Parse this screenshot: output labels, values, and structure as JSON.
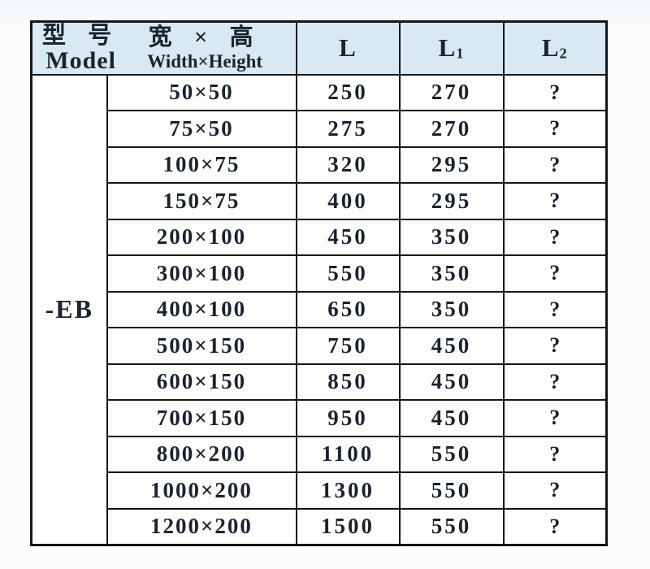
{
  "table": {
    "header": {
      "model_cn": "型 号",
      "model_en": "Model",
      "size_cn": "宽 × 高",
      "size_en": "Width×Height",
      "l": "L",
      "l1": {
        "base": "L",
        "sub": "1"
      },
      "l2": {
        "base": "L",
        "sub": "2"
      }
    },
    "series_label": "-EB",
    "rows": [
      {
        "size": "50×50",
        "l": "250",
        "l1": "270",
        "l2": "?"
      },
      {
        "size": "75×50",
        "l": "275",
        "l1": "270",
        "l2": "?"
      },
      {
        "size": "100×75",
        "l": "320",
        "l1": "295",
        "l2": "?"
      },
      {
        "size": "150×75",
        "l": "400",
        "l1": "295",
        "l2": "?"
      },
      {
        "size": "200×100",
        "l": "450",
        "l1": "350",
        "l2": "?"
      },
      {
        "size": "300×100",
        "l": "550",
        "l1": "350",
        "l2": "?"
      },
      {
        "size": "400×100",
        "l": "650",
        "l1": "350",
        "l2": "?"
      },
      {
        "size": "500×150",
        "l": "750",
        "l1": "450",
        "l2": "?"
      },
      {
        "size": "600×150",
        "l": "850",
        "l1": "450",
        "l2": "?"
      },
      {
        "size": "700×150",
        "l": "950",
        "l1": "450",
        "l2": "?"
      },
      {
        "size": "800×200",
        "l": "1100",
        "l1": "550",
        "l2": "?"
      },
      {
        "size": "1000×200",
        "l": "1300",
        "l1": "550",
        "l2": "?"
      },
      {
        "size": "1200×200",
        "l": "1500",
        "l1": "550",
        "l2": "?"
      }
    ]
  },
  "colors": {
    "header_bg": "#d8e9f4",
    "border": "#161616",
    "text": "#1a232e",
    "cell_bg": "#fdfdfc",
    "page_bg": "#fbfcfd"
  }
}
